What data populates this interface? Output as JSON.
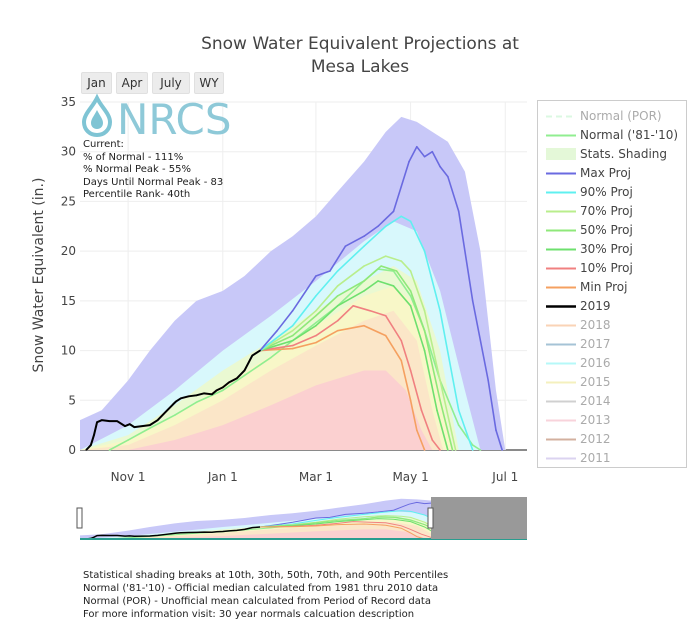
{
  "title_line1": "Snow Water Equivalent Projections at",
  "title_line2": "Mesa Lakes",
  "zoom_buttons": [
    "Jan",
    "Apr",
    "July",
    "WY"
  ],
  "logo_text": "NRCS",
  "info": {
    "line1": "Current:",
    "line2": "% of Normal - 111%",
    "line3": "% Normal Peak - 55%",
    "line4": "Days Until Normal Peak - 83",
    "line5": "Percentile Rank- 40th"
  },
  "footnotes": [
    "Statistical shading breaks at 10th, 30th, 50th, 70th, and 90th Percentiles",
    "Normal ('81-'10) - Official median calculated from 1981 thru 2010 data",
    "Normal (POR) - Unofficial mean calculated from Period of Record data",
    "For more information visit: 30 year normals calcuation description"
  ],
  "colors": {
    "max_proj": "#6a6ae0",
    "p90": "#5ff0f0",
    "p70": "#b9ee8c",
    "p50": "#8fe87a",
    "p30": "#6ee06e",
    "p10": "#f08080",
    "min_proj": "#f5a060",
    "current": "#000000",
    "normal": "#90ee90",
    "normal_por": "#b0f0c0",
    "band_max": "#c8c8f8",
    "band_90": "#d8f8fc",
    "band_70": "#eaf9d2",
    "band_50": "#f8f7c8",
    "band_30": "#fbe6c8",
    "band_10": "#fbd0d0"
  },
  "chart_data": {
    "type": "line",
    "title": "Snow Water Equivalent Projections at Mesa Lakes",
    "ylabel": "Snow Water Equivalent (in.)",
    "xlabel": "",
    "ylim": [
      0,
      35
    ],
    "yticks": [
      0,
      5,
      10,
      15,
      20,
      25,
      30,
      35
    ],
    "xlim": [
      "2019-10-01",
      "2020-07-15"
    ],
    "xticks": [
      {
        "date": "2019-11-01",
        "label": "Nov  1"
      },
      {
        "date": "2020-01-01",
        "label": "Jan  1"
      },
      {
        "date": "2020-03-01",
        "label": "Mar  1"
      },
      {
        "date": "2020-05-01",
        "label": "May  1"
      },
      {
        "date": "2020-07-01",
        "label": "Jul  1"
      }
    ],
    "grid": true,
    "legend_position": "right",
    "legend": [
      {
        "name": "Normal (POR)",
        "kind": "dash",
        "color": "#b0f0c0",
        "visible": false
      },
      {
        "name": "Normal ('81-'10)",
        "kind": "line",
        "color": "#90ee90",
        "visible": true
      },
      {
        "name": "Stats. Shading",
        "kind": "fill",
        "color": "#e4f8d8",
        "visible": true
      },
      {
        "name": "Max Proj",
        "kind": "line",
        "color": "#6a6ae0",
        "visible": true
      },
      {
        "name": "90% Proj",
        "kind": "line",
        "color": "#5ff0f0",
        "visible": true
      },
      {
        "name": "70% Proj",
        "kind": "line",
        "color": "#b9ee8c",
        "visible": true
      },
      {
        "name": "50% Proj",
        "kind": "line",
        "color": "#8fe87a",
        "visible": true
      },
      {
        "name": "30% Proj",
        "kind": "line",
        "color": "#6ee06e",
        "visible": true
      },
      {
        "name": "10% Proj",
        "kind": "line",
        "color": "#f08080",
        "visible": true
      },
      {
        "name": "Min Proj",
        "kind": "line",
        "color": "#f5a060",
        "visible": true
      },
      {
        "name": "2019",
        "kind": "line",
        "color": "#000000",
        "visible": true
      },
      {
        "name": "2018",
        "kind": "line",
        "color": "#f5a060",
        "visible": false
      },
      {
        "name": "2017",
        "kind": "line",
        "color": "#3a7ca5",
        "visible": false
      },
      {
        "name": "2016",
        "kind": "line",
        "color": "#5ff0f0",
        "visible": false
      },
      {
        "name": "2015",
        "kind": "line",
        "color": "#e8e070",
        "visible": false
      },
      {
        "name": "2014",
        "kind": "line",
        "color": "#999999",
        "visible": false
      },
      {
        "name": "2013",
        "kind": "line",
        "color": "#f0a0b0",
        "visible": false
      },
      {
        "name": "2012",
        "kind": "line",
        "color": "#a0522d",
        "visible": false
      },
      {
        "name": "2011",
        "kind": "line",
        "color": "#b0a0e0",
        "visible": false
      }
    ],
    "current_series": {
      "name": "2019",
      "x": [
        "2019-10-05",
        "2019-10-08",
        "2019-10-10",
        "2019-10-12",
        "2019-10-15",
        "2019-10-20",
        "2019-10-25",
        "2019-10-30",
        "2019-11-02",
        "2019-11-05",
        "2019-11-10",
        "2019-11-15",
        "2019-11-20",
        "2019-11-25",
        "2019-11-30",
        "2019-12-02",
        "2019-12-05",
        "2019-12-10",
        "2019-12-15",
        "2019-12-20",
        "2019-12-25",
        "2019-12-28",
        "2020-01-01",
        "2020-01-05",
        "2020-01-10",
        "2020-01-15",
        "2020-01-20",
        "2020-01-25"
      ],
      "y": [
        0,
        0.5,
        1.5,
        2.8,
        3.0,
        2.9,
        2.9,
        2.4,
        2.6,
        2.3,
        2.4,
        2.5,
        3.0,
        3.8,
        4.6,
        4.9,
        5.2,
        5.4,
        5.5,
        5.7,
        5.6,
        6.0,
        6.3,
        6.8,
        7.2,
        8.0,
        9.5,
        10.0
      ]
    },
    "normal_series": {
      "name": "Normal ('81-'10)",
      "x": [
        "2019-10-20",
        "2019-11-01",
        "2019-11-15",
        "2019-12-01",
        "2019-12-15",
        "2020-01-01",
        "2020-01-15",
        "2020-02-01",
        "2020-02-15",
        "2020-03-01",
        "2020-03-15",
        "2020-04-01",
        "2020-04-10",
        "2020-04-20",
        "2020-05-01",
        "2020-05-10",
        "2020-05-20",
        "2020-06-01",
        "2020-06-10",
        "2020-06-15"
      ],
      "y": [
        0,
        1.0,
        2.2,
        3.5,
        4.8,
        6.0,
        7.5,
        9.3,
        11.0,
        12.8,
        14.5,
        17.0,
        18.2,
        18.0,
        15.5,
        12.0,
        7.0,
        2.5,
        0.5,
        0
      ]
    },
    "projections": [
      {
        "name": "Max Proj",
        "x": [
          "2020-01-25",
          "2020-02-05",
          "2020-02-15",
          "2020-03-01",
          "2020-03-10",
          "2020-03-20",
          "2020-04-01",
          "2020-04-10",
          "2020-04-20",
          "2020-04-25",
          "2020-04-30",
          "2020-05-05",
          "2020-05-10",
          "2020-05-15",
          "2020-05-20",
          "2020-05-25",
          "2020-06-01",
          "2020-06-10",
          "2020-06-20",
          "2020-06-25",
          "2020-06-29"
        ],
        "y": [
          10.0,
          12.0,
          14.0,
          17.5,
          18.0,
          20.5,
          21.5,
          22.5,
          24.0,
          26.5,
          29.0,
          30.5,
          29.5,
          30.0,
          28.5,
          27.5,
          24.0,
          15.0,
          7.0,
          2.0,
          0
        ]
      },
      {
        "name": "90% Proj",
        "x": [
          "2020-01-25",
          "2020-02-15",
          "2020-03-01",
          "2020-03-15",
          "2020-04-01",
          "2020-04-15",
          "2020-04-25",
          "2020-05-01",
          "2020-05-10",
          "2020-05-20",
          "2020-06-01",
          "2020-06-10"
        ],
        "y": [
          10.0,
          12.5,
          15.5,
          18.0,
          20.5,
          22.5,
          23.5,
          23.0,
          20.0,
          14.0,
          4.0,
          0
        ]
      },
      {
        "name": "70% Proj",
        "x": [
          "2020-01-25",
          "2020-02-15",
          "2020-03-01",
          "2020-03-15",
          "2020-04-01",
          "2020-04-15",
          "2020-04-25",
          "2020-05-01",
          "2020-05-10",
          "2020-05-20",
          "2020-05-30"
        ],
        "y": [
          10.0,
          12.0,
          14.0,
          16.5,
          18.5,
          19.5,
          19.0,
          18.0,
          14.0,
          7.0,
          0
        ]
      },
      {
        "name": "50% Proj",
        "x": [
          "2020-01-25",
          "2020-02-15",
          "2020-03-01",
          "2020-03-15",
          "2020-04-01",
          "2020-04-12",
          "2020-04-22",
          "2020-05-01",
          "2020-05-10",
          "2020-05-20",
          "2020-05-28"
        ],
        "y": [
          10.0,
          11.5,
          13.5,
          15.5,
          17.0,
          18.5,
          18.0,
          16.0,
          12.0,
          5.0,
          0
        ]
      },
      {
        "name": "30% Proj",
        "x": [
          "2020-01-25",
          "2020-02-15",
          "2020-03-01",
          "2020-03-15",
          "2020-04-01",
          "2020-04-10",
          "2020-04-20",
          "2020-05-01",
          "2020-05-10",
          "2020-05-18",
          "2020-05-25"
        ],
        "y": [
          10.0,
          11.0,
          12.5,
          14.5,
          16.0,
          17.0,
          16.5,
          14.5,
          10.0,
          4.0,
          0
        ]
      },
      {
        "name": "10% Proj",
        "x": [
          "2020-01-25",
          "2020-02-15",
          "2020-03-01",
          "2020-03-15",
          "2020-03-25",
          "2020-04-05",
          "2020-04-15",
          "2020-04-25",
          "2020-05-01",
          "2020-05-08",
          "2020-05-15",
          "2020-05-20"
        ],
        "y": [
          10.0,
          10.5,
          11.5,
          13.0,
          14.5,
          14.0,
          13.5,
          11.0,
          8.0,
          4.0,
          1.0,
          0
        ]
      },
      {
        "name": "Min Proj",
        "x": [
          "2020-01-25",
          "2020-02-15",
          "2020-03-01",
          "2020-03-15",
          "2020-04-01",
          "2020-04-15",
          "2020-04-25",
          "2020-05-01",
          "2020-05-05",
          "2020-05-10"
        ],
        "y": [
          10.0,
          10.2,
          10.8,
          12.0,
          12.5,
          11.5,
          9.0,
          5.0,
          2.0,
          0
        ]
      }
    ],
    "shading": [
      {
        "name": "max",
        "x": [
          "2019-10-01",
          "2019-10-15",
          "2019-11-01",
          "2019-11-15",
          "2019-12-01",
          "2019-12-15",
          "2020-01-01",
          "2020-01-15",
          "2020-02-01",
          "2020-02-15",
          "2020-03-01",
          "2020-03-15",
          "2020-04-01",
          "2020-04-15",
          "2020-04-25",
          "2020-05-05",
          "2020-05-15",
          "2020-05-25",
          "2020-06-05",
          "2020-06-15",
          "2020-06-25",
          "2020-07-01"
        ],
        "y": [
          3.0,
          4.0,
          7.0,
          10.0,
          13.0,
          15.0,
          16.0,
          17.5,
          20.0,
          21.5,
          23.5,
          26.0,
          29.0,
          32.0,
          33.5,
          33.0,
          32.0,
          31.0,
          28.0,
          20.0,
          6.0,
          0
        ]
      },
      {
        "name": "p90",
        "x": [
          "2019-10-01",
          "2019-11-01",
          "2019-12-01",
          "2020-01-01",
          "2020-02-01",
          "2020-03-01",
          "2020-04-01",
          "2020-04-20",
          "2020-05-05",
          "2020-05-20",
          "2020-06-05",
          "2020-06-15"
        ],
        "y": [
          0,
          2.5,
          6.0,
          10.0,
          13.5,
          17.0,
          21.0,
          23.0,
          22.0,
          16.0,
          6.0,
          0
        ]
      },
      {
        "name": "p70",
        "x": [
          "2019-10-01",
          "2019-11-01",
          "2019-12-01",
          "2020-01-01",
          "2020-02-01",
          "2020-03-01",
          "2020-04-01",
          "2020-04-20",
          "2020-05-05",
          "2020-05-20",
          "2020-06-01"
        ],
        "y": [
          0,
          1.5,
          4.5,
          8.0,
          11.0,
          14.0,
          17.0,
          18.5,
          17.0,
          10.0,
          0
        ]
      },
      {
        "name": "p50",
        "x": [
          "2019-10-01",
          "2019-11-01",
          "2019-12-01",
          "2020-01-01",
          "2020-02-01",
          "2020-03-01",
          "2020-04-01",
          "2020-04-20",
          "2020-05-05",
          "2020-05-20",
          "2020-05-28"
        ],
        "y": [
          0,
          1.0,
          3.5,
          6.5,
          9.5,
          12.5,
          15.5,
          16.5,
          14.5,
          6.0,
          0
        ]
      },
      {
        "name": "p30",
        "x": [
          "2019-10-01",
          "2019-11-01",
          "2019-12-01",
          "2020-01-01",
          "2020-02-01",
          "2020-03-01",
          "2020-04-01",
          "2020-04-20",
          "2020-05-05",
          "2020-05-15",
          "2020-05-22"
        ],
        "y": [
          0,
          0.5,
          2.5,
          5.0,
          8.0,
          10.5,
          13.0,
          14.0,
          11.0,
          4.0,
          0
        ]
      },
      {
        "name": "p10",
        "x": [
          "2019-10-01",
          "2019-11-01",
          "2019-12-01",
          "2020-01-01",
          "2020-02-01",
          "2020-03-01",
          "2020-04-01",
          "2020-04-15",
          "2020-04-28",
          "2020-05-08",
          "2020-05-15"
        ],
        "y": [
          0,
          0,
          1.0,
          2.5,
          4.5,
          6.5,
          8.0,
          8.0,
          6.0,
          2.0,
          0
        ]
      }
    ]
  }
}
